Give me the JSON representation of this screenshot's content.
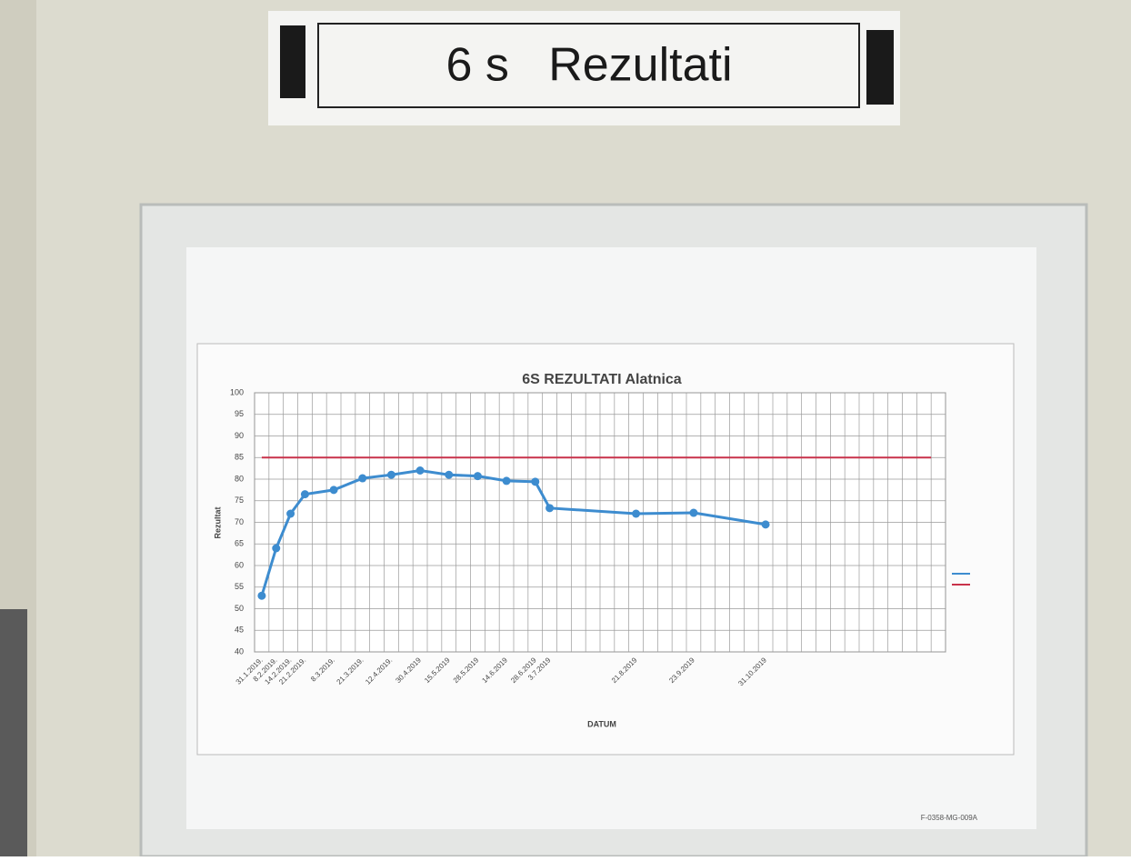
{
  "sign": {
    "title": "6 s   Rezultati"
  },
  "form_code": "F-0358-MG-009A",
  "chart_data": {
    "type": "line",
    "title": "6S REZULTATI Alatnica",
    "y_label": "Rezultat",
    "x_label": "DATUM",
    "categories": [
      "31.1.2019.",
      "8.2.2019.",
      "14.2.2019.",
      "21.2.2019.",
      "8.3.2019.",
      "21.3.2019.",
      "12.4.2019.",
      "30.4.2019",
      "15.5.2019",
      "28.5.2019",
      "14.6.2019",
      "28.6.2019",
      "3.7.2019",
      "21.8.2019",
      "23.9.2019",
      "31.10.2019"
    ],
    "series": [
      {
        "color": "#3d8ccf",
        "values": [
          53,
          64,
          72,
          76.5,
          77.5,
          80.2,
          81,
          82,
          81,
          80.7,
          79.6,
          79.4,
          73.3,
          72,
          72.2,
          69.5
        ]
      }
    ],
    "target": 85,
    "target_color": "#c8324a",
    "ylim": [
      40,
      100
    ],
    "yticks": [
      40,
      45,
      50,
      55,
      60,
      65,
      70,
      75,
      80,
      85,
      90,
      95,
      100
    ],
    "grid": true
  }
}
